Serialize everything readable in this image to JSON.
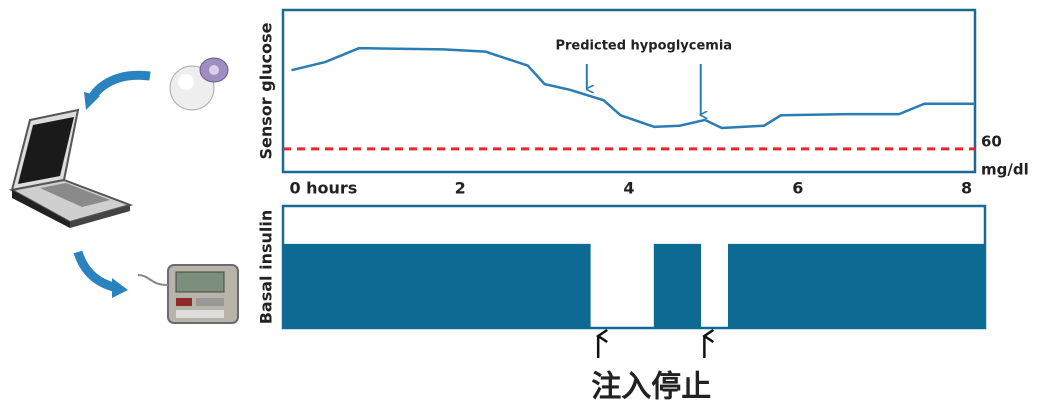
{
  "chart_data": [
    {
      "type": "line",
      "ylabel": "Sensor glucose",
      "color": "#2a7db3",
      "x": [
        0,
        0.4,
        0.8,
        1.8,
        2.3,
        2.8,
        3.0,
        3.3,
        3.7,
        3.9,
        4.3,
        4.6,
        4.9,
        5.1,
        5.6,
        5.8,
        6.6,
        7.2,
        7.5,
        8.1
      ],
      "values": [
        128,
        135,
        147,
        146,
        144,
        132,
        116,
        111,
        102,
        89,
        79,
        80,
        85,
        78,
        80,
        89,
        90,
        90,
        99,
        99
      ],
      "xlim": [
        -0.1,
        8.1
      ],
      "ylim": [
        40,
        180
      ],
      "xticks": [
        {
          "value": 0,
          "label": "0 hours"
        },
        2,
        4,
        6,
        8
      ],
      "threshold": 60,
      "threshold_unit": "mg/dl",
      "threshold_color": "#e8262b",
      "annotation": "Predicted hypoglycemia",
      "annotation_x": [
        3.5,
        4.85
      ]
    },
    {
      "type": "bar",
      "ylabel": "Basal insulin",
      "color": "#0d6a93",
      "starts": [
        -0.1,
        4.3,
        5.18
      ],
      "ends": [
        3.55,
        4.86,
        8.23
      ],
      "values": [
        1,
        1,
        1
      ],
      "xlim": [
        -0.1,
        8.23
      ],
      "ylim": [
        0,
        1.45
      ],
      "annotation": "注入停止",
      "annotation_x": [
        3.64,
        4.9
      ]
    }
  ]
}
